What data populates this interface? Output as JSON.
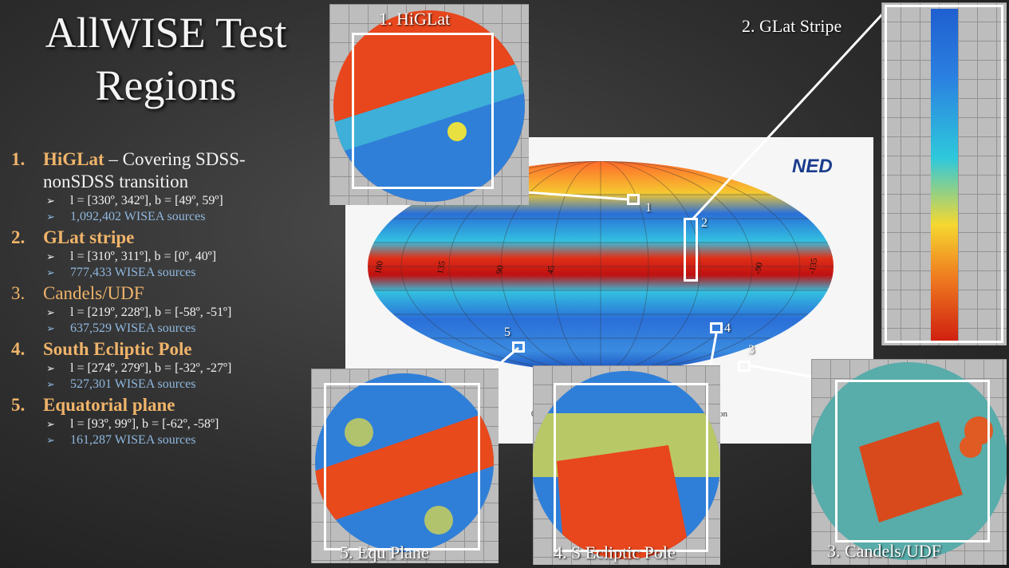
{
  "title_line1": "AllWISE Test",
  "title_line2": "Regions",
  "regions": [
    {
      "num": "1.",
      "name": "HiGLat",
      "rest": " – Covering SDSS-",
      "rest2": "nonSDSS transition",
      "coords": "l = [330º, 342º], b = [49º, 59º]",
      "sources": "1,092,402 WISEA sources"
    },
    {
      "num": "2.",
      "name": "GLat stripe",
      "rest": "",
      "coords": "l = [310º, 311º], b = [0º, 40º]",
      "sources": "777,433 WISEA sources"
    },
    {
      "num": "3.",
      "name": "Candels/UDF",
      "rest": "",
      "coords": "l = [219º, 228º], b = [-58º, -51º]",
      "sources": "637,529 WISEA sources"
    },
    {
      "num": "4.",
      "name": "South Ecliptic Pole",
      "rest": "",
      "coords": "l = [274º, 279º], b = [-32º, -27º]",
      "sources": "527,301 WISEA sources"
    },
    {
      "num": "5.",
      "name": "Equatorial plane",
      "rest": "",
      "coords": "l = [93º, 99º],  b = [-62º, -58º]",
      "sources": "161,287 WISEA sources"
    }
  ],
  "bullet": "➢",
  "captions": {
    "higlat": "1. HiGLat",
    "glat": "2. GLat Stripe",
    "candels": "3. Candels/UDF",
    "sep": "4. S Ecliptic Pole",
    "equ": "5. Equ Plane"
  },
  "markers": [
    "1",
    "2",
    "3",
    "4",
    "5"
  ],
  "map": {
    "logo": "NED",
    "lon_labels": [
      "180",
      "135",
      "90",
      "45",
      "0",
      "-45",
      "-90",
      "-135"
    ],
    "lat_labels": [
      "60",
      "30",
      "0",
      "-30",
      "-60"
    ],
    "footer_left": "0",
    "footer_right": "ion"
  }
}
